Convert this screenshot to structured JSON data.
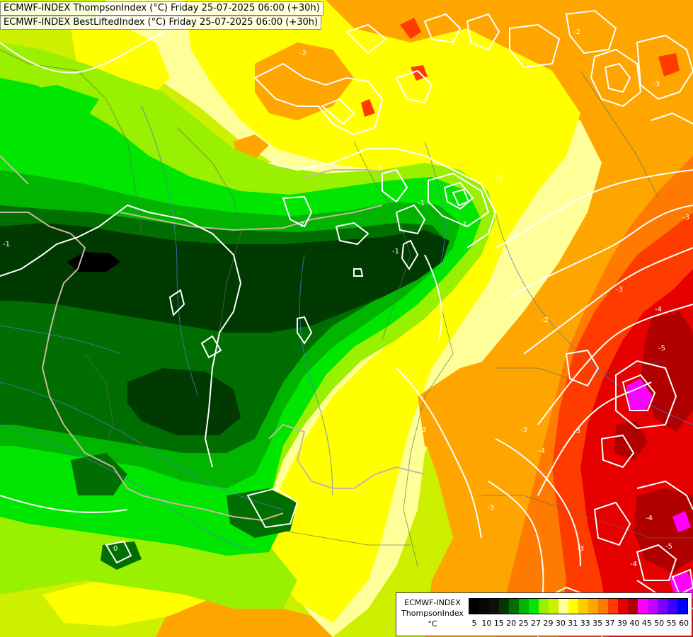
{
  "header": {
    "line1": "ECMWF-INDEX ThompsonIndex (°C) Friday 25-07-2025 06:00 (+30h)",
    "line2": "ECMWF-INDEX BestLiftedIndex (°C) Friday 25-07-2025 06:00 (+30h)"
  },
  "legend": {
    "title_line1": "ECMWF-INDEX",
    "title_line2": "ThompsonIndex",
    "title_line3": "°C",
    "ticks": [
      "5",
      "10",
      "15",
      "20",
      "25",
      "27",
      "29",
      "30",
      "31",
      "33",
      "35",
      "37",
      "39",
      "40",
      "45",
      "50",
      "55",
      "60"
    ],
    "colors": [
      "#000000",
      "#080808",
      "#0f0f0f",
      "#003a00",
      "#006e00",
      "#00b400",
      "#00e600",
      "#99f000",
      "#ccf000",
      "#ffff99",
      "#ffff00",
      "#ffcc00",
      "#ffa500",
      "#ff7a00",
      "#ff3c00",
      "#e60000",
      "#b00000",
      "#ff00ff",
      "#c400ff",
      "#7a00ff",
      "#3c00ff",
      "#0000ff"
    ]
  },
  "contour_labels": [
    "-2",
    "-1",
    "-1",
    "-2",
    "-3",
    "-3",
    "-3",
    "-2",
    "-1",
    "-2",
    "-1",
    "-2",
    "-1",
    "-1",
    "-3",
    "-4",
    "-4",
    "-5",
    "-4",
    "-5",
    "-4",
    "-3",
    "0",
    "-3",
    "-3",
    "-3"
  ],
  "colors": {
    "contour": "#ffffff",
    "border": "#c9b7a0",
    "river": "#4a7bd0",
    "region": "#5a6e5a"
  }
}
